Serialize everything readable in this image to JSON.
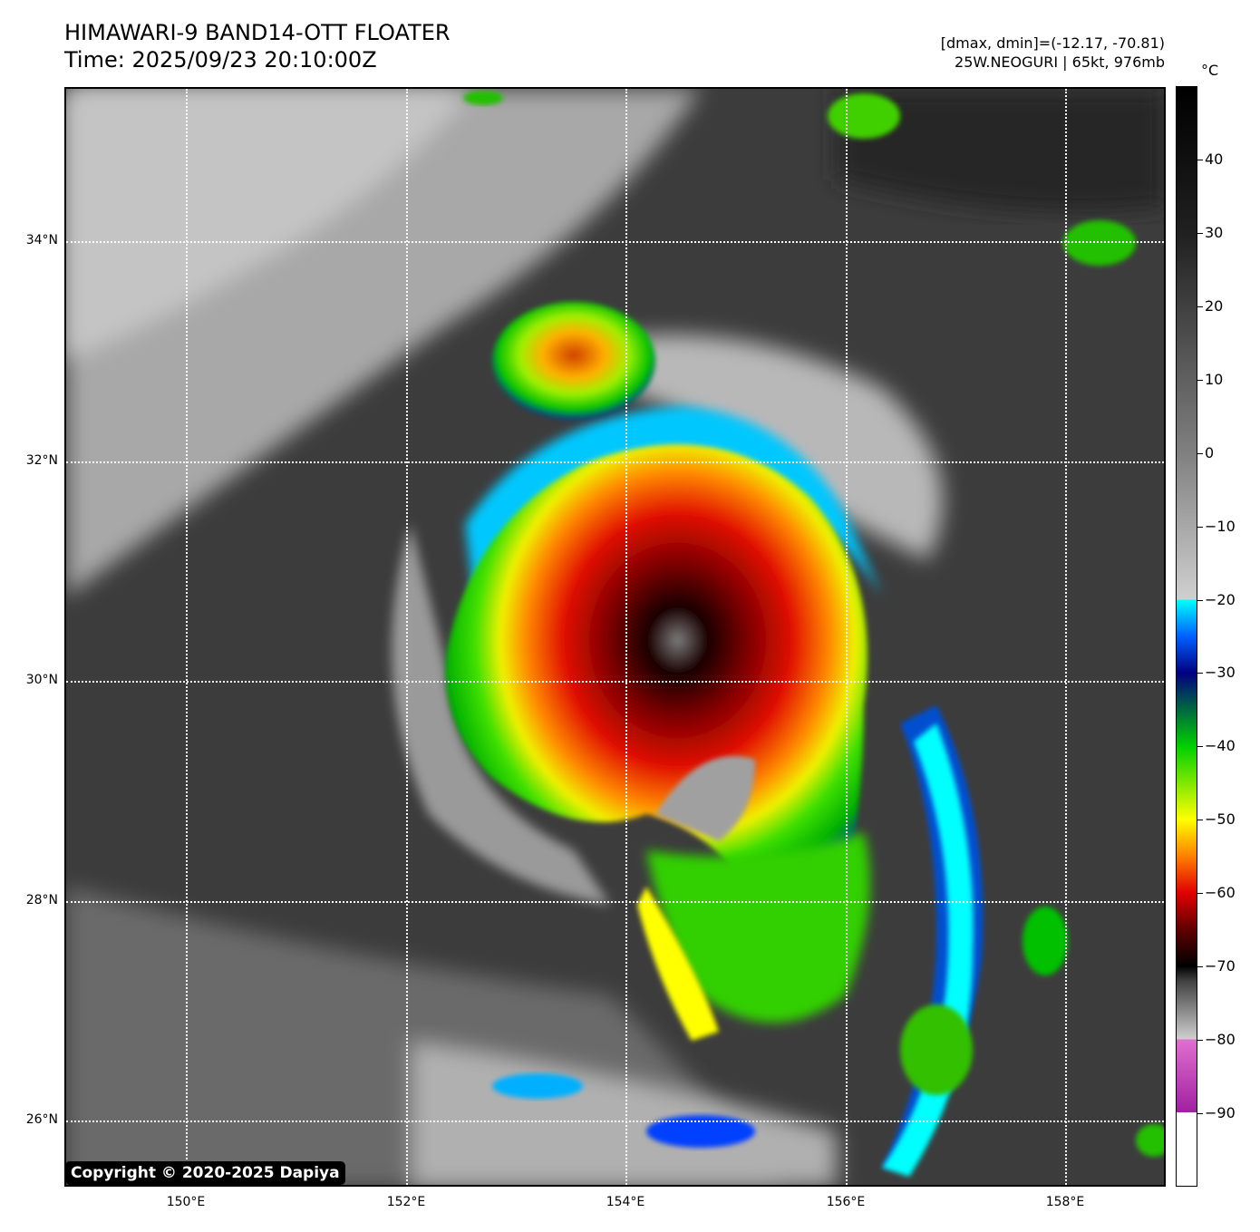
{
  "header": {
    "title_line1": "HIMAWARI-9 BAND14-OTT FLOATER",
    "title_line2": "Time: 2025/09/23 20:10:00Z",
    "dmax_dmin": "[dmax, dmin]=(-12.17, -70.81)",
    "storm_info": "25W.NEOGURI | 65kt, 976mb"
  },
  "map": {
    "lat_labels": [
      "34°N",
      "32°N",
      "30°N",
      "28°N",
      "26°N"
    ],
    "lon_labels": [
      "150°E",
      "152°E",
      "154°E",
      "156°E",
      "158°E"
    ],
    "lat_range": [
      25.4,
      35.4
    ],
    "lon_range": [
      148.9,
      158.9
    ],
    "gridlines": true
  },
  "colorbar": {
    "unit": "°C",
    "tick_labels": [
      "40",
      "30",
      "20",
      "10",
      "0",
      "−10",
      "−20",
      "−30",
      "−40",
      "−50",
      "−60",
      "−70",
      "−80",
      "−90"
    ],
    "tick_values": [
      40,
      30,
      20,
      10,
      0,
      -10,
      -20,
      -30,
      -40,
      -50,
      -60,
      -70,
      -80,
      -90
    ],
    "range": [
      -100,
      50
    ],
    "colors": {
      "white": "#ffffff",
      "magenta": "#a020a0",
      "gray_light": "#d0d0d0",
      "black": "#000000",
      "dark_red": "#600000",
      "red": "#e00000",
      "orange": "#ff8000",
      "yellow": "#ffff00",
      "green": "#00d000",
      "dark_blue": "#000080",
      "blue": "#0060ff",
      "cyan": "#00ffff"
    }
  },
  "footer": {
    "copyright": "Copyright © 2020-2025 Dapiya"
  }
}
